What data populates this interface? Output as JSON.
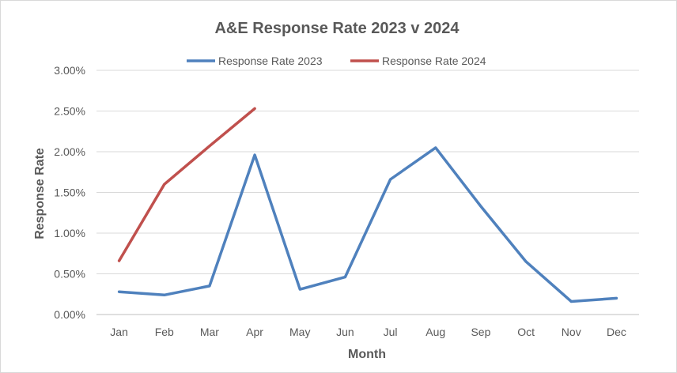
{
  "chart_data": {
    "type": "line",
    "title": "A&E Response Rate 2023 v 2024",
    "xlabel": "Month",
    "ylabel": "Response Rate",
    "categories": [
      "Jan",
      "Feb",
      "Mar",
      "Apr",
      "May",
      "Jun",
      "Jul",
      "Aug",
      "Sep",
      "Oct",
      "Nov",
      "Dec"
    ],
    "y_ticks": [
      "0.00%",
      "0.50%",
      "1.00%",
      "1.50%",
      "2.00%",
      "2.50%",
      "3.00%"
    ],
    "ylim": [
      0,
      3.0
    ],
    "y_unit": "%",
    "grid": "horizontal",
    "legend_position": "top",
    "series": [
      {
        "name": "Response Rate 2023",
        "color": "#4f81bd",
        "values": [
          0.28,
          0.24,
          0.35,
          1.96,
          0.31,
          0.46,
          1.66,
          2.05,
          1.33,
          0.65,
          0.16,
          0.2
        ]
      },
      {
        "name": "Response Rate 2024",
        "color": "#c0504d",
        "values": [
          0.66,
          1.6,
          2.07,
          2.53,
          null,
          null,
          null,
          null,
          null,
          null,
          null,
          null
        ]
      }
    ]
  }
}
